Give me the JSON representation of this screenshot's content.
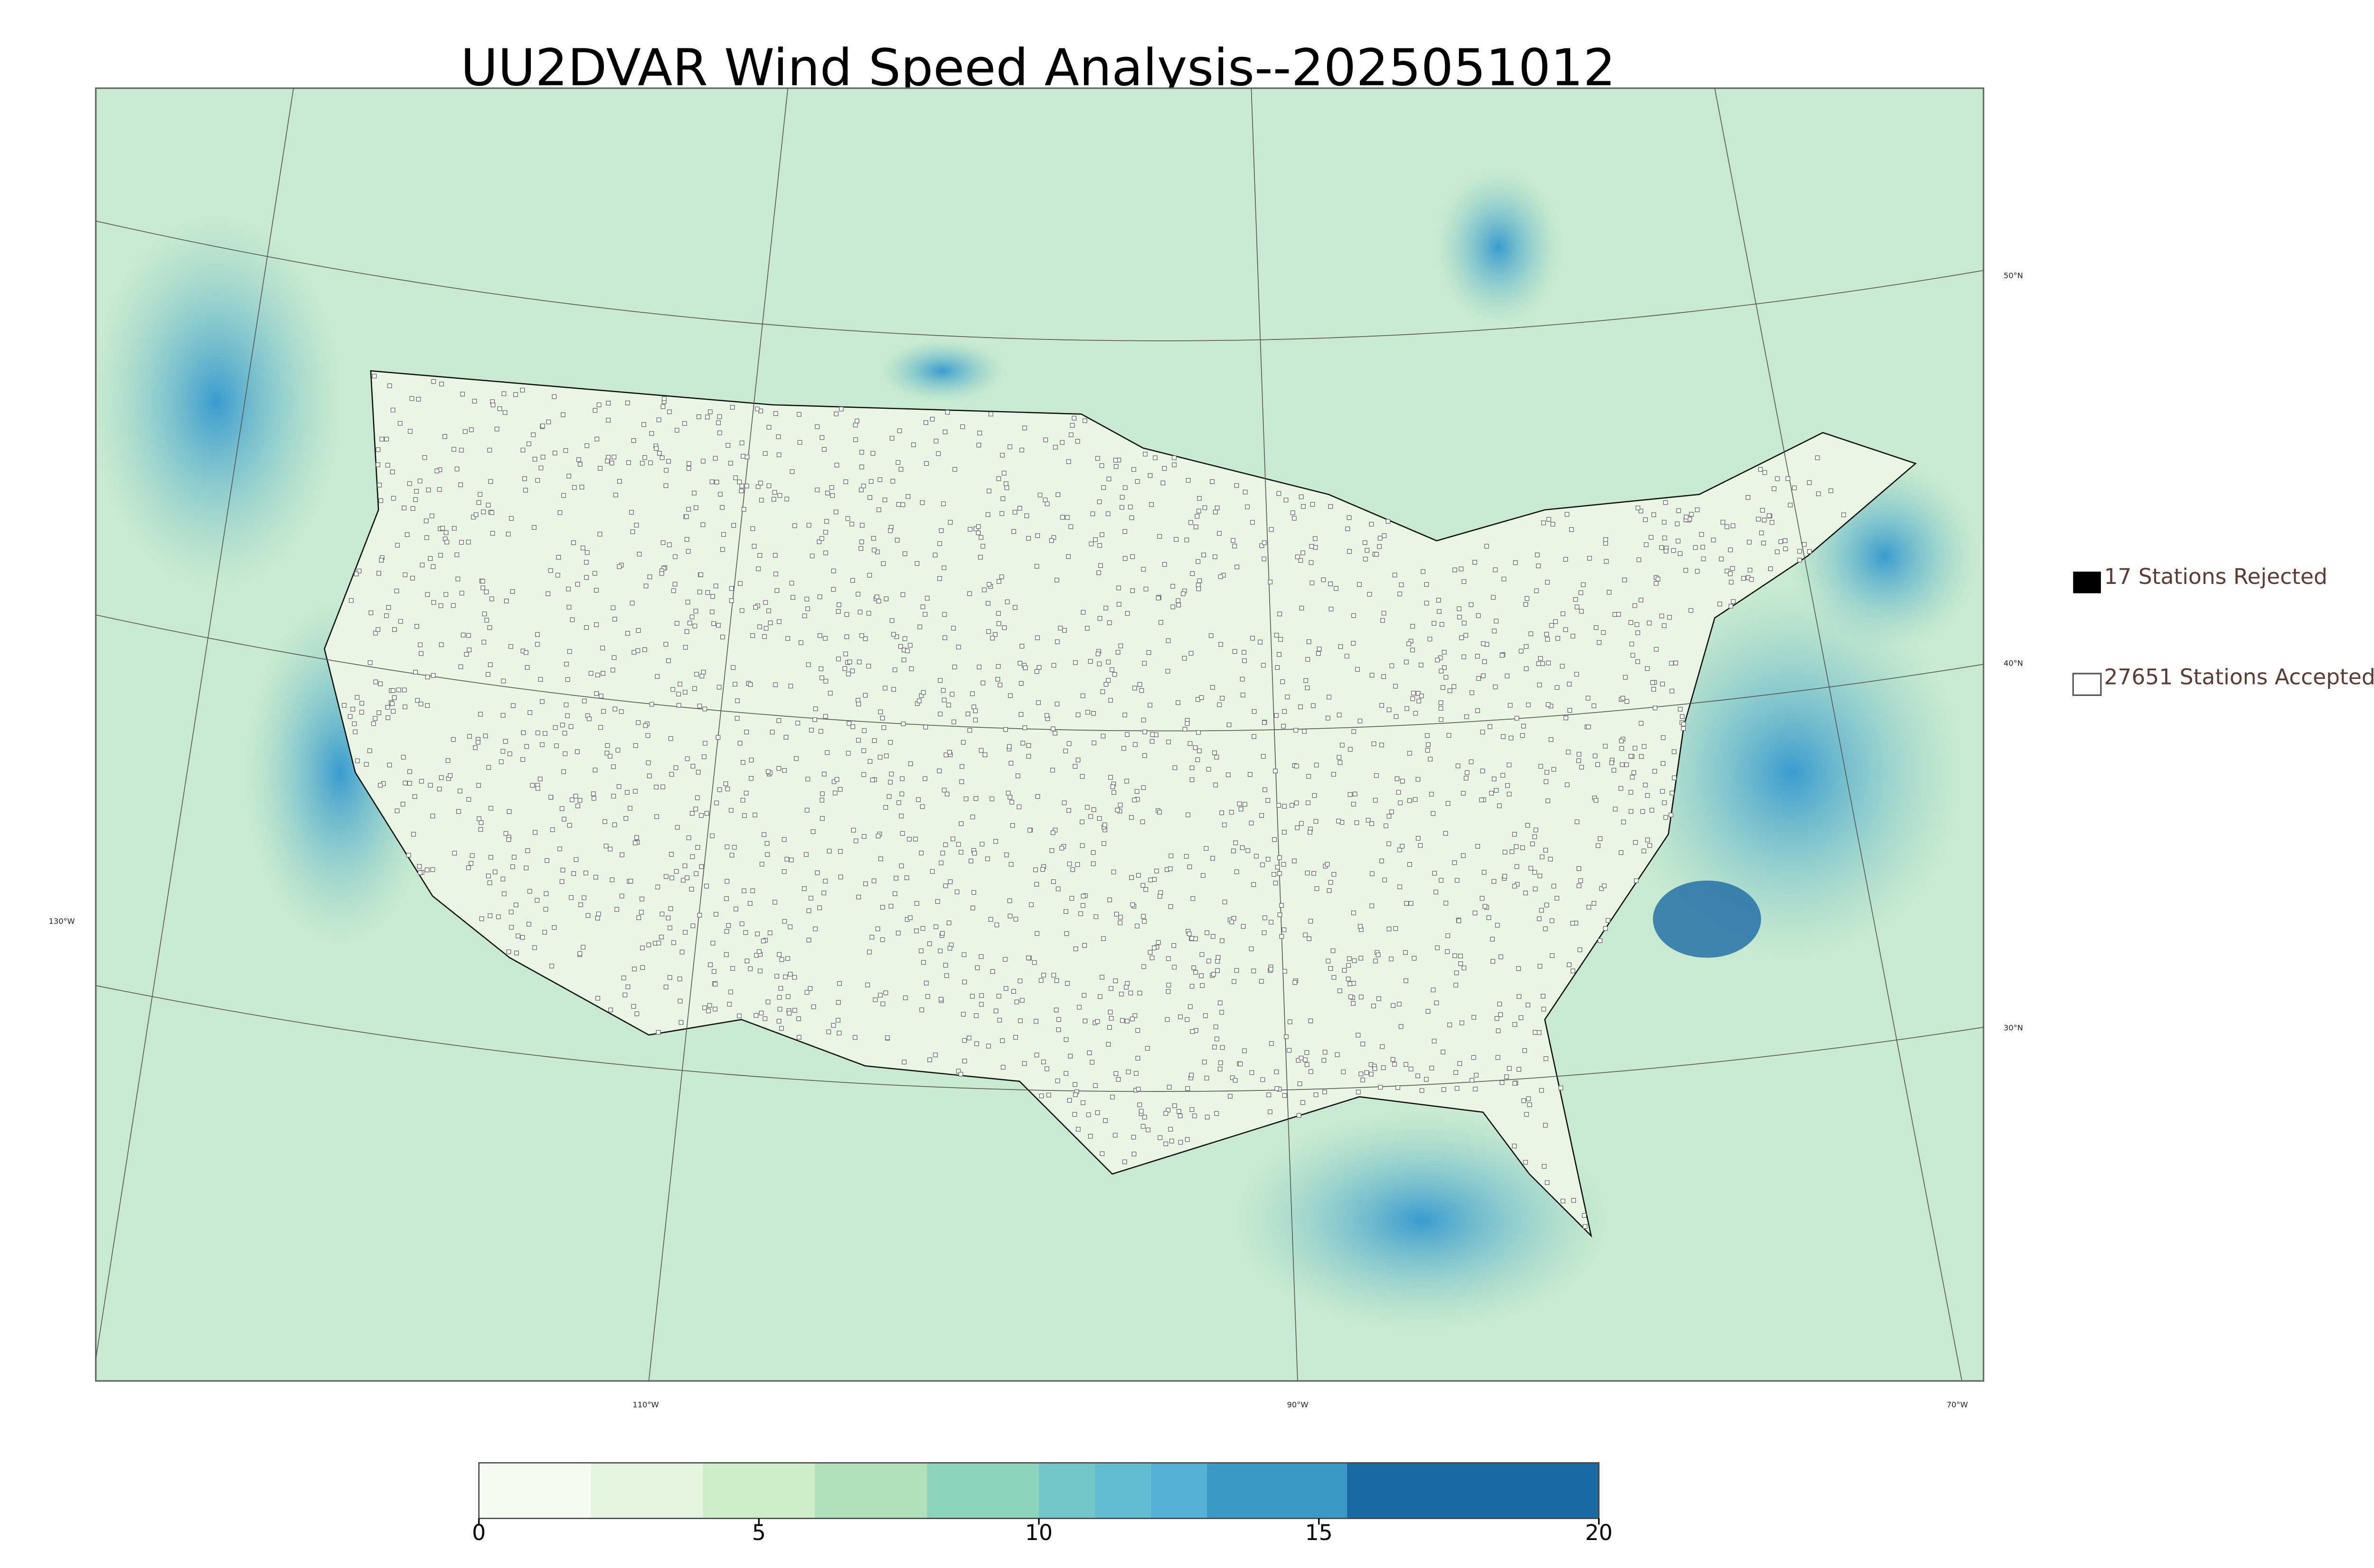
{
  "title": "UU2DVAR Wind Speed Analysis--2025051012",
  "map": {
    "lat_labels": [
      "50°N",
      "40°N",
      "30°N"
    ],
    "lon_labels": [
      "130°W",
      "110°W",
      "90°W",
      "70°W"
    ]
  },
  "legend": {
    "rejected": "17 Stations Rejected",
    "accepted": "27651 Stations Accepted"
  },
  "colorbar": {
    "range": [
      0,
      20
    ],
    "ticks": [
      0,
      5,
      10,
      15,
      20
    ],
    "levels": [
      0,
      2,
      4,
      6,
      8,
      10,
      11,
      12,
      13,
      15.5,
      20
    ],
    "colors": [
      "#f4fbf0",
      "#e4f5df",
      "#cdecc8",
      "#b0e0bb",
      "#8dd3bd",
      "#72c8c8",
      "#62bccf",
      "#56b0d5",
      "#3b98c6",
      "#1c6aa4"
    ]
  }
}
